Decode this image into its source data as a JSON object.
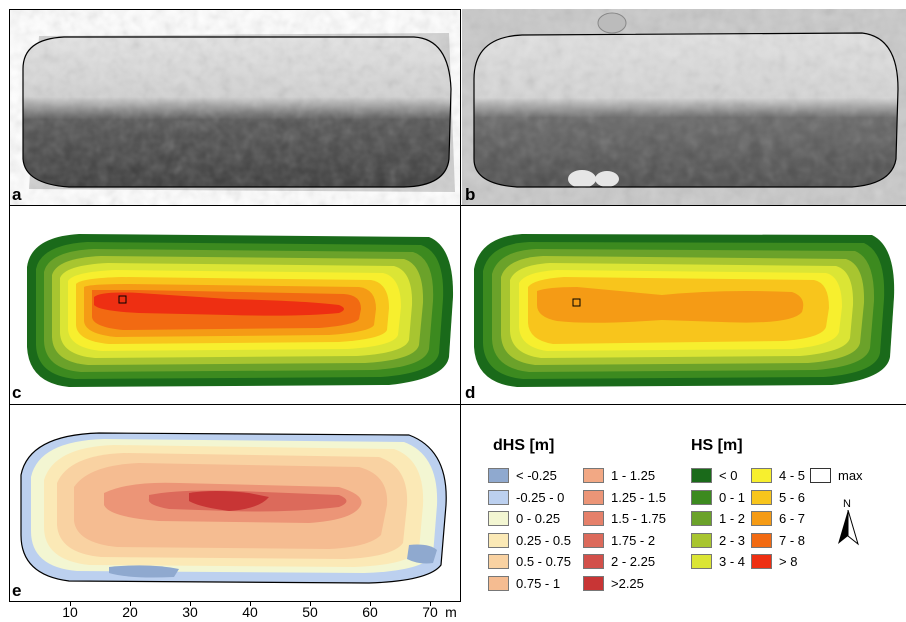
{
  "panels": {
    "a": {
      "label": "a"
    },
    "b": {
      "label": "b"
    },
    "c": {
      "label": "c"
    },
    "d": {
      "label": "d"
    },
    "e": {
      "label": "e"
    }
  },
  "legend_dhs": {
    "title": "dHS [m]",
    "items": [
      {
        "label": "< -0.25",
        "color": "#8fa9cf"
      },
      {
        "label": "-0.25 - 0",
        "color": "#bcd0ef"
      },
      {
        "label": "0 - 0.25",
        "color": "#f3f6d2"
      },
      {
        "label": "0.25 - 0.5",
        "color": "#fbe9b6"
      },
      {
        "label": "0.5 - 0.75",
        "color": "#f9d2a2"
      },
      {
        "label": "0.75 - 1",
        "color": "#f5bc91"
      },
      {
        "label": "1 - 1.25",
        "color": "#f2a884"
      },
      {
        "label": "1.25 - 1.5",
        "color": "#ec9577"
      },
      {
        "label": "1.5 - 1.75",
        "color": "#e5806a"
      },
      {
        "label": "1.75 - 2",
        "color": "#dc6a5b"
      },
      {
        "label": "2 - 2.25",
        "color": "#d2504a"
      },
      {
        "label": ">2.25",
        "color": "#c83535"
      }
    ]
  },
  "legend_hs": {
    "title": "HS [m]",
    "items": [
      {
        "label": "< 0",
        "color": "#1a6a1a"
      },
      {
        "label": "0 - 1",
        "color": "#3c8a1f"
      },
      {
        "label": "1 - 2",
        "color": "#6ba22a"
      },
      {
        "label": "2 - 3",
        "color": "#a8c530"
      },
      {
        "label": "3 - 4",
        "color": "#dbe535"
      },
      {
        "label": "4 - 5",
        "color": "#f7ef2e"
      },
      {
        "label": "5 - 6",
        "color": "#f8c51c"
      },
      {
        "label": "6 - 7",
        "color": "#f59b15"
      },
      {
        "label": "7 - 8",
        "color": "#f26a12"
      },
      {
        "label": "> 8",
        "color": "#ee2f12"
      }
    ],
    "max_label": "max"
  },
  "north_arrow": {
    "label": "N"
  },
  "x_axis": {
    "ticks": [
      "10",
      "20",
      "30",
      "40",
      "50",
      "60",
      "70"
    ],
    "unit": "m"
  }
}
